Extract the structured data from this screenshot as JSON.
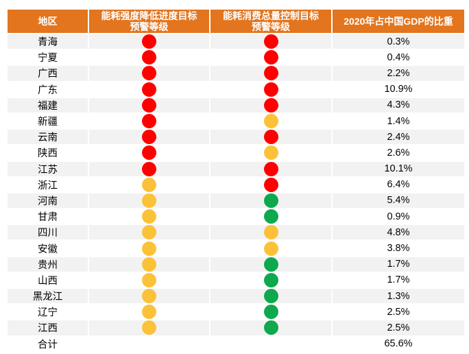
{
  "chart_data": {
    "type": "table",
    "columns": [
      "地区",
      "能耗强度降低进度目标预警等级",
      "能耗消费总量控制目标预警等级",
      "2020年占中国GDP的比重"
    ],
    "header": {
      "region": "地区",
      "intensity_line1": "能耗强度降低进度目标",
      "intensity_line2": "预警等级",
      "total_line1": "能耗消费总量控制目标",
      "total_line2": "预警等级",
      "gdp": "2020年占中国GDP的比重"
    },
    "colors": {
      "header_bg": "#E2751E",
      "alt_row_bg": "#F2F2F2",
      "red": "#FF0000",
      "yellow": "#FBC239",
      "green": "#0EA84E"
    },
    "rows": [
      {
        "region": "青海",
        "intensity_warning": "red",
        "total_warning": "red",
        "gdp_share": "0.3%"
      },
      {
        "region": "宁夏",
        "intensity_warning": "red",
        "total_warning": "red",
        "gdp_share": "0.4%"
      },
      {
        "region": "广西",
        "intensity_warning": "red",
        "total_warning": "red",
        "gdp_share": "2.2%"
      },
      {
        "region": "广东",
        "intensity_warning": "red",
        "total_warning": "red",
        "gdp_share": "10.9%"
      },
      {
        "region": "福建",
        "intensity_warning": "red",
        "total_warning": "red",
        "gdp_share": "4.3%"
      },
      {
        "region": "新疆",
        "intensity_warning": "red",
        "total_warning": "yellow",
        "gdp_share": "1.4%"
      },
      {
        "region": "云南",
        "intensity_warning": "red",
        "total_warning": "red",
        "gdp_share": "2.4%"
      },
      {
        "region": "陕西",
        "intensity_warning": "red",
        "total_warning": "yellow",
        "gdp_share": "2.6%"
      },
      {
        "region": "江苏",
        "intensity_warning": "red",
        "total_warning": "red",
        "gdp_share": "10.1%"
      },
      {
        "region": "浙江",
        "intensity_warning": "yellow",
        "total_warning": "red",
        "gdp_share": "6.4%"
      },
      {
        "region": "河南",
        "intensity_warning": "yellow",
        "total_warning": "green",
        "gdp_share": "5.4%"
      },
      {
        "region": "甘肃",
        "intensity_warning": "yellow",
        "total_warning": "green",
        "gdp_share": "0.9%"
      },
      {
        "region": "四川",
        "intensity_warning": "yellow",
        "total_warning": "yellow",
        "gdp_share": "4.8%"
      },
      {
        "region": "安徽",
        "intensity_warning": "yellow",
        "total_warning": "yellow",
        "gdp_share": "3.8%"
      },
      {
        "region": "贵州",
        "intensity_warning": "yellow",
        "total_warning": "green",
        "gdp_share": "1.7%"
      },
      {
        "region": "山西",
        "intensity_warning": "yellow",
        "total_warning": "green",
        "gdp_share": "1.7%"
      },
      {
        "region": "黑龙江",
        "intensity_warning": "yellow",
        "total_warning": "green",
        "gdp_share": "1.3%"
      },
      {
        "region": "辽宁",
        "intensity_warning": "yellow",
        "total_warning": "green",
        "gdp_share": "2.5%"
      },
      {
        "region": "江西",
        "intensity_warning": "yellow",
        "total_warning": "green",
        "gdp_share": "2.5%"
      },
      {
        "region": "合计",
        "intensity_warning": null,
        "total_warning": null,
        "gdp_share": "65.6%"
      }
    ]
  }
}
